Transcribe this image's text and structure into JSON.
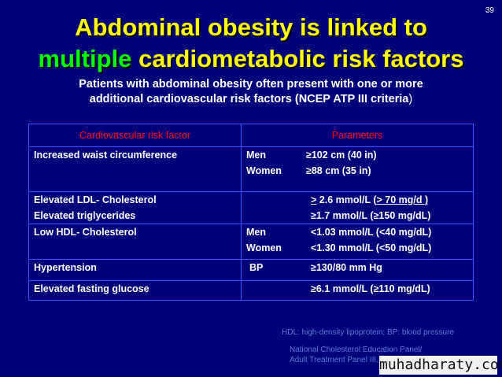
{
  "slide_number": "39",
  "title": {
    "line1": "Abdominal obesity is linked to",
    "line2_highlight": "multiple",
    "line2_rest": " cardiometabolic risk factors"
  },
  "subtitle": {
    "line1": "Patients with abdominal obesity often present with one or more",
    "line2": "additional cardiovascular risk factors (NCEP ATP III criteria",
    "line2_end": ")"
  },
  "table": {
    "headers": [
      "Cardiovascular risk factor",
      "Parameters"
    ],
    "rows": [
      {
        "factors": [
          "Increased waist circumference"
        ],
        "params": [
          {
            "label": "Men",
            "value": "≥102 cm (40 in)"
          },
          {
            "label": "Women",
            "value": "≥88 cm (35 in)"
          }
        ]
      },
      {
        "factors": [
          "Elevated LDL- Cholesterol",
          "Elevated triglycerides"
        ],
        "params": [
          {
            "label": "",
            "value_u1": ">",
            "value_mid": " 2.6 mmol/L (",
            "value_u2": "> 70 mg/d )"
          },
          {
            "label": "",
            "value": "≥1.7 mmol/L (≥150 mg/dL)"
          }
        ]
      },
      {
        "factors": [
          "Low HDL- Cholesterol"
        ],
        "params": [
          {
            "label": "Men",
            "value": "<1.03 mmol/L (<40 mg/dL)"
          },
          {
            "label": "Women",
            "value": "<1.30 mmol/L (<50 mg/dL)"
          }
        ]
      },
      {
        "factors": [
          "Hypertension"
        ],
        "params": [
          {
            "label": "BP",
            "value": "≥130/80 mm Hg"
          }
        ]
      },
      {
        "factors": [
          "Elevated fasting glucose"
        ],
        "params": [
          {
            "label": "",
            "value": "≥6.1 mmol/L (≥110 mg/dL)"
          }
        ]
      }
    ]
  },
  "footnote": "HDL: high-density lipoprotein; BP: blood pressure",
  "source": {
    "line1": "National Cholesterol Education Panel/",
    "line2": "Adult Treatment Panel III. 2001"
  },
  "watermark": "muhadharaty.com",
  "colors": {
    "background": "#00007a",
    "title": "#ffff00",
    "title_highlight": "#00ff00",
    "header_text": "#ff0000",
    "table_border": "#3355ff",
    "footnote": "#5b7bd5"
  }
}
